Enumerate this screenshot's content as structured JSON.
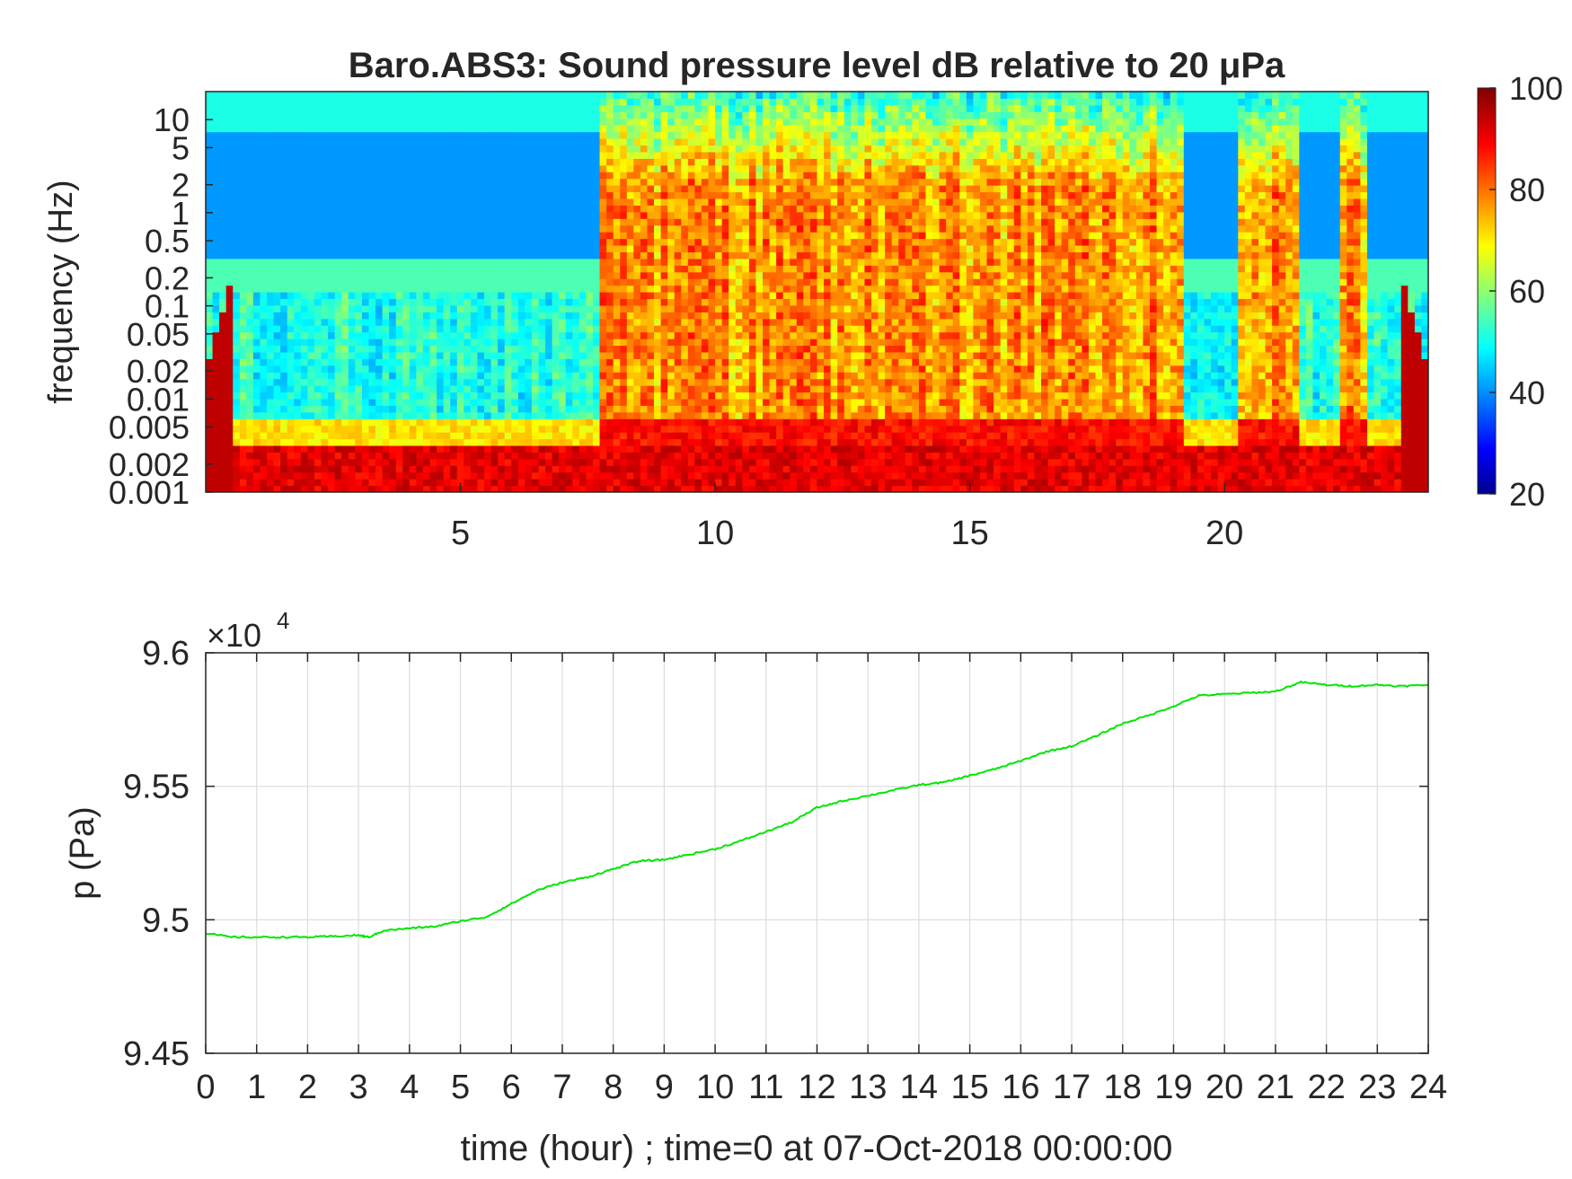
{
  "chart_data": [
    {
      "type": "heatmap",
      "title": "Baro.ABS3: Sound pressure level dB relative to 20 μPa",
      "xlabel": "",
      "ylabel": "frequency (Hz)",
      "xlim": [
        0,
        24
      ],
      "ylim": [
        0.001,
        20
      ],
      "yscale": "log",
      "x_ticks": [
        5,
        10,
        15,
        20
      ],
      "x_tick_labels": [
        "5",
        "10",
        "15",
        "20"
      ],
      "y_ticks": [
        0.001,
        0.002,
        0.005,
        0.01,
        0.02,
        0.05,
        0.1,
        0.2,
        0.5,
        1,
        2,
        5,
        10
      ],
      "y_tick_labels": [
        "0.001",
        "0.002",
        "0.005",
        "0.01",
        "0.02",
        "0.05",
        "0.1",
        "0.2",
        "0.5",
        "1",
        "2",
        "5",
        "10"
      ],
      "colormap": "jet",
      "colorbar": {
        "range": [
          20,
          100
        ],
        "ticks": [
          20,
          40,
          60,
          80,
          100
        ],
        "tick_labels": [
          "20",
          "40",
          "60",
          "80",
          "100"
        ]
      },
      "active_intervals_hours": [
        [
          7.8,
          9.6
        ],
        [
          9.6,
          19.2
        ],
        [
          20.3,
          21.5
        ],
        [
          22.3,
          22.8
        ]
      ],
      "quiet_level_db": 42,
      "active_level_db": 85,
      "low_frequency_level_db": 88
    },
    {
      "type": "line",
      "xlabel": "time (hour) ; time=0 at 07-Oct-2018 00:00:00",
      "ylabel": "p (Pa)",
      "y_multiplier_label": "×10",
      "y_multiplier_exponent": "4",
      "xlim": [
        0,
        24
      ],
      "ylim": [
        94500,
        96000
      ],
      "x_ticks": [
        0,
        1,
        2,
        3,
        4,
        5,
        6,
        7,
        8,
        9,
        10,
        11,
        12,
        13,
        14,
        15,
        16,
        17,
        18,
        19,
        20,
        21,
        22,
        23,
        24
      ],
      "x_tick_labels": [
        "0",
        "1",
        "2",
        "3",
        "4",
        "5",
        "6",
        "7",
        "8",
        "9",
        "10",
        "11",
        "12",
        "13",
        "14",
        "15",
        "16",
        "17",
        "18",
        "19",
        "20",
        "21",
        "22",
        "23",
        "24"
      ],
      "y_ticks": [
        94500,
        95000,
        95500,
        96000
      ],
      "y_tick_labels": [
        "9.45",
        "9.5",
        "9.55",
        "9.6"
      ],
      "grid": true,
      "series": [
        {
          "color": "#00e600",
          "x": [
            0,
            0.5,
            1,
            1.5,
            2,
            2.5,
            3,
            3.2,
            3.5,
            4,
            4.5,
            5,
            5.5,
            6,
            6.5,
            7,
            7.5,
            8,
            8.5,
            9,
            9.5,
            10,
            10.5,
            11,
            11.5,
            12,
            12.5,
            13,
            13.5,
            14,
            14.5,
            15,
            15.5,
            16,
            16.5,
            17,
            17.5,
            18,
            18.5,
            19,
            19.5,
            20,
            20.5,
            21,
            21.5,
            22,
            22.5,
            23,
            23.5,
            24
          ],
          "y": [
            94950,
            94935,
            94935,
            94935,
            94935,
            94938,
            94942,
            94935,
            94960,
            94968,
            94975,
            94995,
            95010,
            95060,
            95110,
            95140,
            95160,
            95190,
            95220,
            95225,
            95245,
            95265,
            95295,
            95330,
            95365,
            95420,
            95445,
            95465,
            95485,
            95505,
            95515,
            95540,
            95565,
            95595,
            95630,
            95650,
            95690,
            95735,
            95765,
            95800,
            95840,
            95845,
            95850,
            95855,
            95890,
            95880,
            95875,
            95880,
            95875,
            95880
          ]
        }
      ]
    }
  ]
}
